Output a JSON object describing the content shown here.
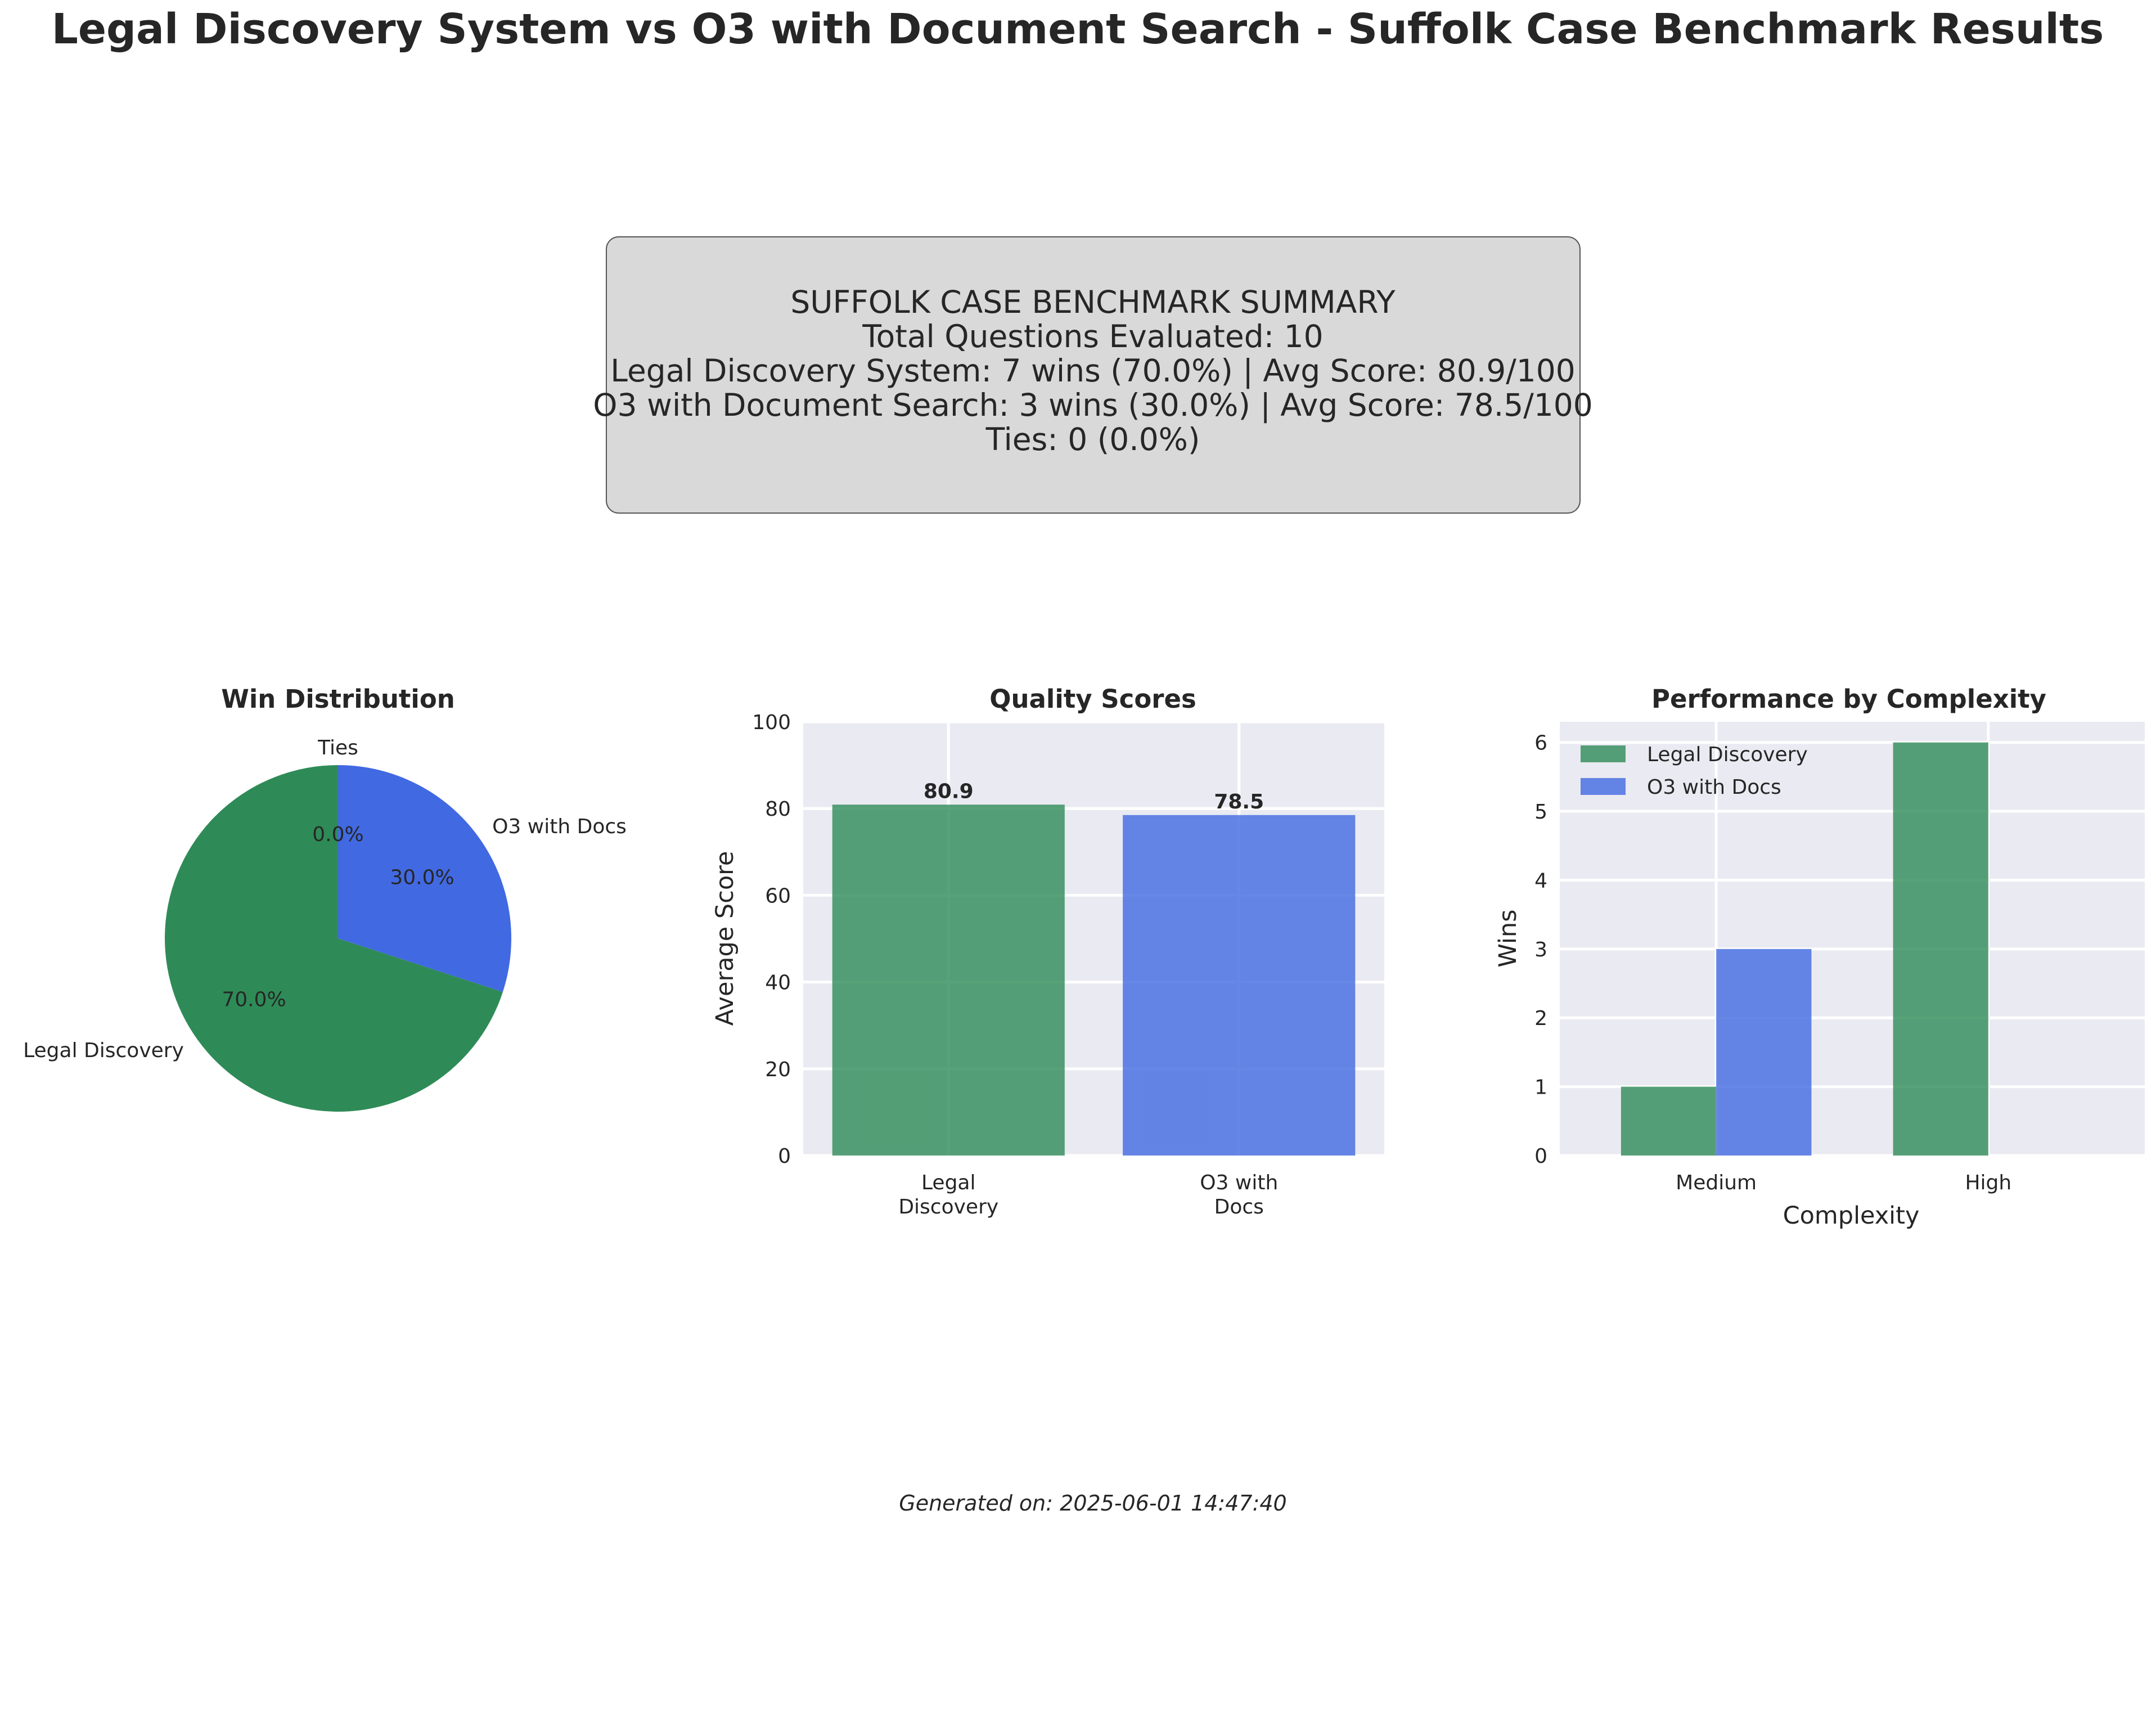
{
  "figure_title": "Legal Discovery System vs O3 with Document Search - Suffolk Case Benchmark Results",
  "summary": {
    "lines": [
      "SUFFOLK CASE BENCHMARK SUMMARY",
      "Total Questions Evaluated: 10",
      "Legal Discovery System: 7 wins (70.0%) | Avg Score: 80.9/100",
      "O3 with Document Search: 3 wins (30.0%) | Avg Score: 78.5/100",
      "Ties: 0 (0.0%)"
    ]
  },
  "footer": "Generated on: 2025-06-01 14:47:40",
  "colors": {
    "legal": "#2e8b57",
    "o3": "#4169e1",
    "panel_bg": "#eaeaf2",
    "summary_bg": "#d9d9d9"
  },
  "chart_data": [
    {
      "type": "pie",
      "title": "Win Distribution",
      "labels": [
        "Legal Discovery",
        "O3 with Docs",
        "Ties"
      ],
      "values": [
        70.0,
        30.0,
        0.0
      ],
      "pct_labels": [
        "70.0%",
        "30.0%",
        "0.0%"
      ],
      "colors": [
        "#2e8b57",
        "#4169e1",
        "#808080"
      ]
    },
    {
      "type": "bar",
      "title": "Quality Scores",
      "categories": [
        "Legal\nDiscovery",
        "O3 with\nDocs"
      ],
      "values": [
        80.9,
        78.5
      ],
      "value_labels": [
        "80.9",
        "78.5"
      ],
      "ylabel": "Average Score",
      "xlabel": "",
      "ylim": [
        0,
        100
      ],
      "yticks": [
        0,
        20,
        40,
        60,
        80,
        100
      ],
      "grid": true
    },
    {
      "type": "bar",
      "title": "Performance by Complexity",
      "categories": [
        "Medium",
        "High"
      ],
      "series": [
        {
          "name": "Legal Discovery",
          "values": [
            1,
            6
          ]
        },
        {
          "name": "O3 with Docs",
          "values": [
            3,
            0
          ]
        }
      ],
      "xlabel": "Complexity",
      "ylabel": "Wins",
      "ylim": [
        0,
        6.3
      ],
      "yticks": [
        0,
        1,
        2,
        3,
        4,
        5,
        6
      ],
      "legend": "top-left",
      "grid": true
    }
  ]
}
